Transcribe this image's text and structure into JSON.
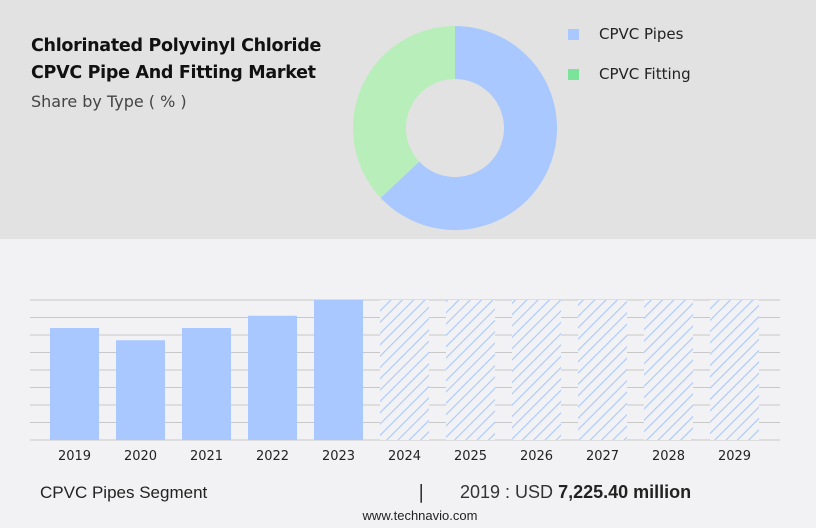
{
  "header": {
    "title_line1": "Chlorinated Polyvinyl Chloride",
    "title_line2": "CPVC Pipe And Fitting Market",
    "subtitle": "Share by Type ( % )"
  },
  "legend": [
    {
      "label": "CPVC Pipes",
      "color": "#a8c8ff"
    },
    {
      "label": "CPVC Fitting",
      "color": "#7ce39a"
    }
  ],
  "footer": {
    "segment": "CPVC Pipes Segment",
    "separator": "|",
    "value_prefix": "2019 : USD ",
    "value_bold": "7,225.40 million",
    "url": "www.technavio.com"
  },
  "chart_data": [
    {
      "type": "pie",
      "title": "Share by Type ( % )",
      "donut": true,
      "categories": [
        "CPVC Pipes",
        "CPVC Fitting"
      ],
      "values": [
        63,
        37
      ],
      "colors": [
        "#a8c8ff",
        "#b8eeba"
      ],
      "legend_position": "right"
    },
    {
      "type": "bar",
      "title": "CPVC Pipes Segment",
      "categories": [
        "2019",
        "2020",
        "2021",
        "2022",
        "2023",
        "2024",
        "2025",
        "2026",
        "2027",
        "2028",
        "2029"
      ],
      "values": [
        7225.4,
        6700,
        7225.4,
        7800,
        8550,
        null,
        null,
        null,
        null,
        null,
        null
      ],
      "forecast_years": [
        "2024",
        "2025",
        "2026",
        "2027",
        "2028",
        "2029"
      ],
      "bar_relative_heights": [
        0.64,
        0.57,
        0.64,
        0.71,
        0.8,
        0.8,
        0.8,
        0.8,
        0.8,
        0.8,
        0.8
      ],
      "xlabel": "",
      "ylabel": "",
      "grid": true,
      "annotation": "2019 : USD 7,225.40 million"
    }
  ]
}
